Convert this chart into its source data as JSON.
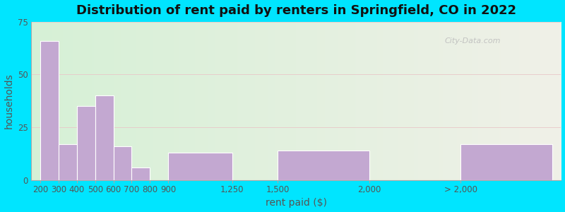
{
  "title": "Distribution of rent paid by renters in Springfield, CO in 2022",
  "xlabel": "rent paid ($)",
  "ylabel": "households",
  "bar_labels": [
    "200",
    "300",
    "400",
    "500",
    "600",
    "700",
    "800",
    "900",
    "1,250",
    "1,500",
    "2,000",
    "> 2,000"
  ],
  "bar_values": [
    66,
    17,
    35,
    40,
    16,
    6,
    0,
    13,
    0,
    14,
    0,
    17
  ],
  "bar_color": "#c3a8d1",
  "bar_edgecolor": "#ffffff",
  "ylim": [
    0,
    75
  ],
  "yticks": [
    0,
    25,
    50,
    75
  ],
  "background_outer": "#00e5ff",
  "background_inner_left": "#d6f0d6",
  "background_inner_right": "#f0f0e8",
  "title_fontsize": 13,
  "axis_label_fontsize": 10,
  "tick_fontsize": 8.5,
  "watermark": "City-Data.com"
}
